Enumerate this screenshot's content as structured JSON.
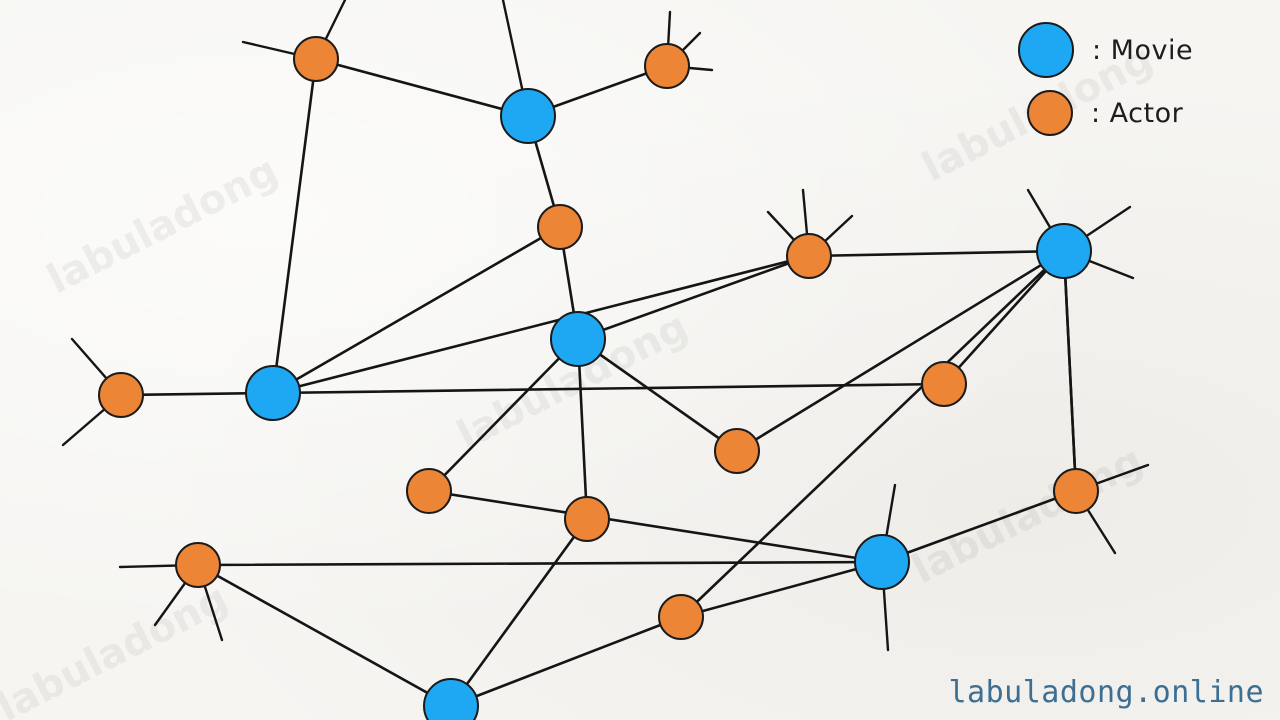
{
  "legend": {
    "movie_label": ": Movie",
    "actor_label": ":  Actor",
    "movie_color": "#1ea7f2",
    "actor_color": "#ec8535"
  },
  "watermark_text": "labuladong",
  "site_label": "labuladong.online",
  "nodes": [
    {
      "id": "M1",
      "kind": "movie"
    },
    {
      "id": "M2",
      "kind": "movie"
    },
    {
      "id": "M3",
      "kind": "movie"
    },
    {
      "id": "M4",
      "kind": "movie"
    },
    {
      "id": "M5",
      "kind": "movie"
    },
    {
      "id": "M6",
      "kind": "movie"
    },
    {
      "id": "A1",
      "kind": "actor"
    },
    {
      "id": "A2",
      "kind": "actor"
    },
    {
      "id": "A3",
      "kind": "actor"
    },
    {
      "id": "A4",
      "kind": "actor"
    },
    {
      "id": "A5",
      "kind": "actor"
    },
    {
      "id": "A6",
      "kind": "actor"
    },
    {
      "id": "A7",
      "kind": "actor"
    },
    {
      "id": "A8",
      "kind": "actor"
    },
    {
      "id": "A9",
      "kind": "actor"
    },
    {
      "id": "A10",
      "kind": "actor"
    },
    {
      "id": "A11",
      "kind": "actor"
    },
    {
      "id": "A12",
      "kind": "actor"
    },
    {
      "id": "A13",
      "kind": "actor"
    }
  ],
  "edges": [
    [
      "A1",
      "M1"
    ],
    [
      "A2",
      "M1"
    ],
    [
      "M1",
      "A3"
    ],
    [
      "A3",
      "M2"
    ],
    [
      "A1",
      "M3"
    ],
    [
      "A3",
      "M3"
    ],
    [
      "A4",
      "M3"
    ],
    [
      "M3",
      "A5"
    ],
    [
      "M3",
      "A7"
    ],
    [
      "A5",
      "M2"
    ],
    [
      "A5",
      "M6"
    ],
    [
      "A7",
      "M6"
    ],
    [
      "M2",
      "A6"
    ],
    [
      "A6",
      "M6"
    ],
    [
      "M2",
      "A8"
    ],
    [
      "A8",
      "M5"
    ],
    [
      "M2",
      "A9"
    ],
    [
      "A9",
      "M4"
    ],
    [
      "M4",
      "A10"
    ],
    [
      "A10",
      "M5"
    ],
    [
      "M4",
      "A11"
    ],
    [
      "A11",
      "M5"
    ],
    [
      "M5",
      "A12"
    ],
    [
      "A12",
      "M6"
    ],
    [
      "M6",
      "A13"
    ],
    [
      "M6",
      "A11"
    ]
  ]
}
